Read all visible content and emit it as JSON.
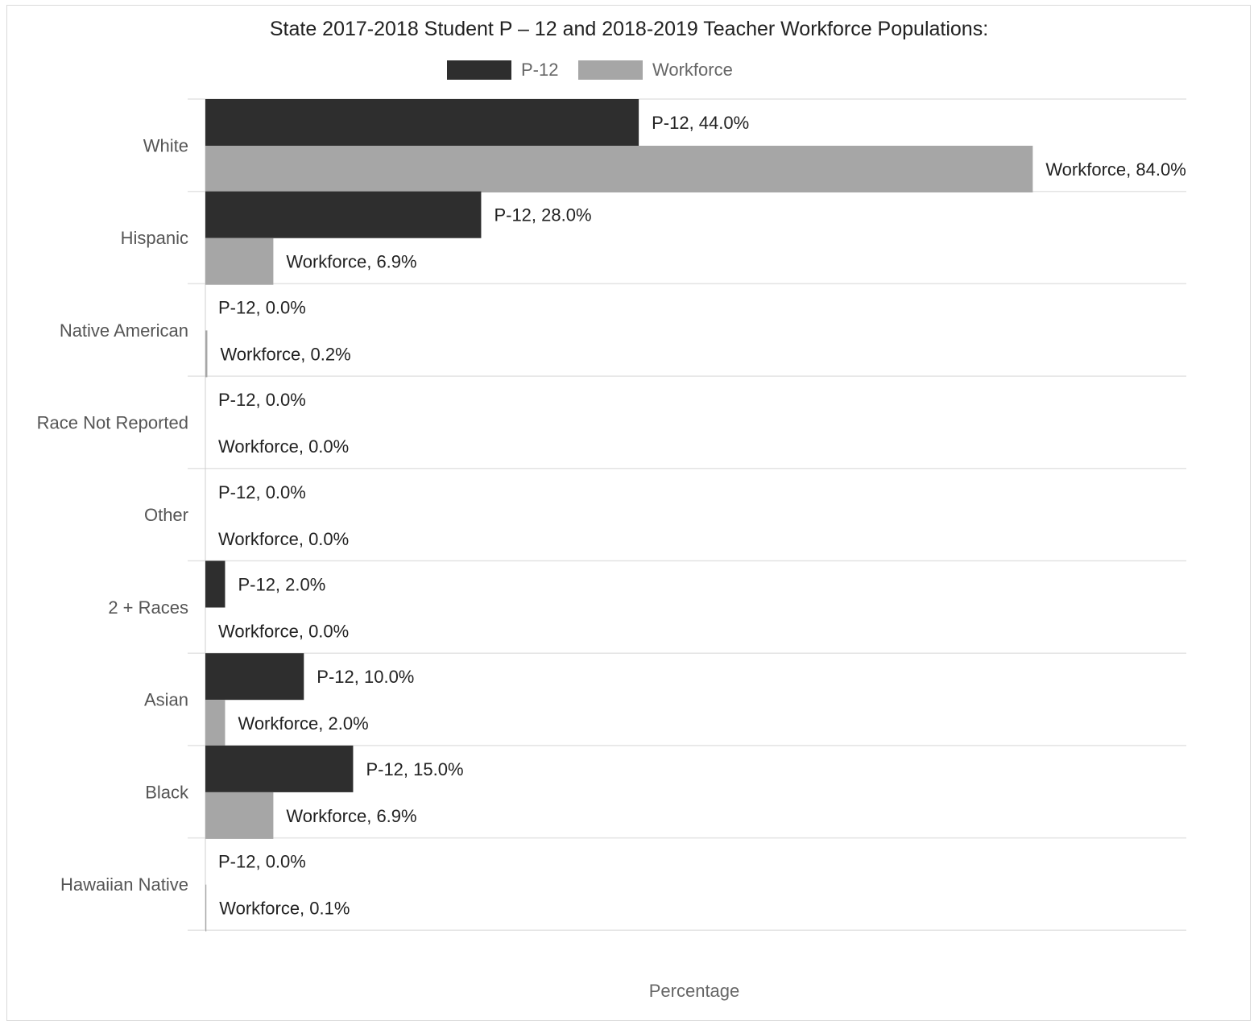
{
  "chart_data": {
    "type": "bar",
    "orientation": "horizontal",
    "title": "State 2017-2018 Student P – 12 and 2018-2019 Teacher Workforce Populations:",
    "xlabel": "Percentage",
    "ylabel": "",
    "xlim": [
      0,
      100
    ],
    "legend": "top",
    "grid": true,
    "categories": [
      "White",
      "Hispanic",
      "Native American",
      "Race Not Reported",
      "Other",
      "2 + Races",
      "Asian",
      "Black",
      "Hawaiian Native"
    ],
    "series": [
      {
        "name": "P-12",
        "color": "#2e2e2e",
        "values": [
          44.0,
          28.0,
          0.0,
          0.0,
          0.0,
          2.0,
          10.0,
          15.0,
          0.0
        ],
        "labels": [
          "P-12, 44.0%",
          "P-12, 28.0%",
          "P-12, 0.0%",
          "P-12, 0.0%",
          "P-12, 0.0%",
          "P-12, 2.0%",
          "P-12, 10.0%",
          "P-12, 15.0%",
          "P-12, 0.0%"
        ]
      },
      {
        "name": "Workforce",
        "color": "#a6a6a6",
        "values": [
          84.0,
          6.9,
          0.2,
          0.0,
          0.0,
          0.0,
          2.0,
          6.9,
          0.1
        ],
        "labels": [
          "Workforce, 84.0%",
          "Workforce, 6.9%",
          "Workforce, 0.2%",
          "Workforce, 0.0%",
          "Workforce, 0.0%",
          "Workforce, 0.0%",
          "Workforce, 2.0%",
          "Workforce, 6.9%",
          "Workforce, 0.1%"
        ]
      }
    ]
  }
}
